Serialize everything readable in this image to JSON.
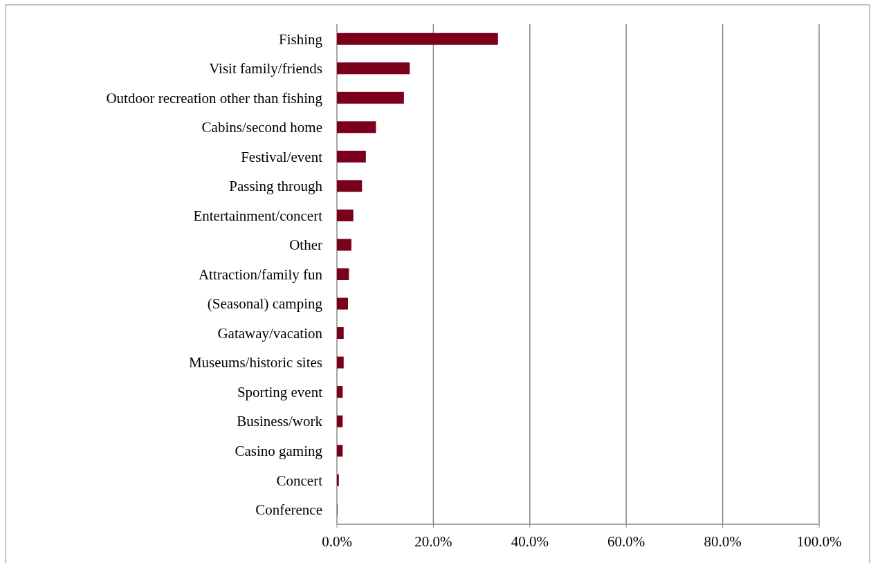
{
  "chart_data": {
    "type": "bar",
    "orientation": "horizontal",
    "categories": [
      "Fishing",
      "Visit family/friends",
      "Outdoor recreation other than fishing",
      "Cabins/second home",
      "Festival/event",
      "Passing through",
      "Entertainment/concert",
      "Other",
      "Attraction/family fun",
      "(Seasonal) camping",
      "Gataway/vacation",
      "Museums/historic sites",
      "Sporting event",
      "Business/work",
      "Casino gaming",
      "Concert",
      "Conference"
    ],
    "values": [
      33.4,
      15.1,
      13.9,
      8.1,
      6.0,
      5.2,
      3.4,
      3.0,
      2.5,
      2.3,
      1.4,
      1.4,
      1.2,
      1.2,
      1.2,
      0.4,
      0.1
    ],
    "color": "#7a001c",
    "xlim": [
      0,
      100
    ],
    "xticks": [
      {
        "value": 0,
        "label": "0.0%"
      },
      {
        "value": 20,
        "label": "20.0%"
      },
      {
        "value": 40,
        "label": "40.0%"
      },
      {
        "value": 60,
        "label": "60.0%"
      },
      {
        "value": 80,
        "label": "80.0%"
      },
      {
        "value": 100,
        "label": "100.0%"
      }
    ],
    "grid": "x"
  }
}
